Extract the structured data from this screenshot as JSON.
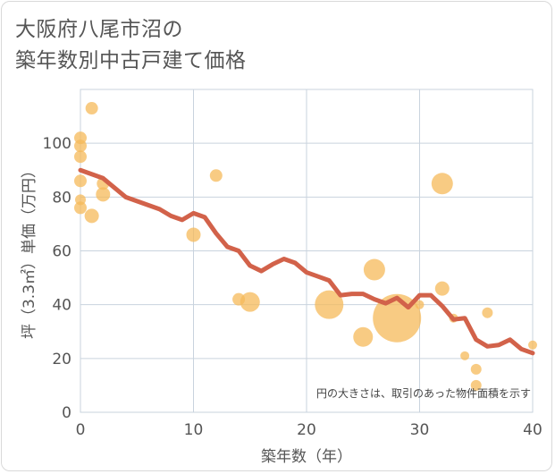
{
  "title": {
    "line1": "大阪府八尾市沼の",
    "line2": "築年数別中古戸建て価格"
  },
  "chart_data": {
    "type": "scatter",
    "xlabel": "築年数（年）",
    "ylabel": "坪（3.3㎡）単価（万円）",
    "xlim": [
      0,
      40
    ],
    "ylim": [
      0,
      120
    ],
    "xticks": [
      0,
      10,
      20,
      30,
      40
    ],
    "yticks": [
      0,
      20,
      40,
      60,
      80,
      100
    ],
    "grid": true,
    "annotation": "円の大きさは、取引のあった物件面積を示す",
    "colors": {
      "bubble": "#f5b95a",
      "line": "#d2624a",
      "grid": "#c9d3de",
      "text": "#555555"
    },
    "bubbles": [
      {
        "x": 0,
        "y": 102,
        "size": 7
      },
      {
        "x": 0,
        "y": 99,
        "size": 7
      },
      {
        "x": 0,
        "y": 95,
        "size": 7
      },
      {
        "x": 0,
        "y": 86,
        "size": 7
      },
      {
        "x": 0,
        "y": 79,
        "size": 6
      },
      {
        "x": 0,
        "y": 76,
        "size": 7
      },
      {
        "x": 1,
        "y": 113,
        "size": 7
      },
      {
        "x": 1,
        "y": 73,
        "size": 8
      },
      {
        "x": 2,
        "y": 85,
        "size": 7
      },
      {
        "x": 2,
        "y": 81,
        "size": 8
      },
      {
        "x": 10,
        "y": 66,
        "size": 8
      },
      {
        "x": 12,
        "y": 88,
        "size": 7
      },
      {
        "x": 14,
        "y": 42,
        "size": 7
      },
      {
        "x": 15,
        "y": 41,
        "size": 11
      },
      {
        "x": 22,
        "y": 40,
        "size": 16
      },
      {
        "x": 25,
        "y": 28,
        "size": 11
      },
      {
        "x": 26,
        "y": 53,
        "size": 12
      },
      {
        "x": 28,
        "y": 35,
        "size": 27
      },
      {
        "x": 30,
        "y": 40,
        "size": 5
      },
      {
        "x": 32,
        "y": 85,
        "size": 12
      },
      {
        "x": 32,
        "y": 46,
        "size": 8
      },
      {
        "x": 33,
        "y": 35,
        "size": 5
      },
      {
        "x": 34,
        "y": 21,
        "size": 5
      },
      {
        "x": 35,
        "y": 16,
        "size": 6
      },
      {
        "x": 35,
        "y": 10,
        "size": 6
      },
      {
        "x": 36,
        "y": 37,
        "size": 6
      },
      {
        "x": 40,
        "y": 25,
        "size": 5
      }
    ],
    "trend": {
      "x": [
        0,
        1,
        2,
        3,
        4,
        5,
        6,
        7,
        8,
        9,
        10,
        11,
        12,
        13,
        14,
        15,
        16,
        17,
        18,
        19,
        20,
        21,
        22,
        23,
        24,
        25,
        26,
        27,
        28,
        29,
        30,
        31,
        32,
        33,
        34,
        35,
        36,
        37,
        38,
        39,
        40
      ],
      "y": [
        90,
        88.5,
        87,
        83.5,
        80,
        78.5,
        77,
        75.5,
        73,
        71.5,
        74,
        72.5,
        66.5,
        61.5,
        60,
        54.5,
        52.5,
        55,
        57,
        55.5,
        52,
        50.5,
        49,
        43.5,
        44,
        44,
        42,
        40.5,
        42.5,
        39,
        43.5,
        43.5,
        39.5,
        34.5,
        35,
        27,
        24.5,
        25,
        27,
        23.5,
        22
      ]
    }
  }
}
